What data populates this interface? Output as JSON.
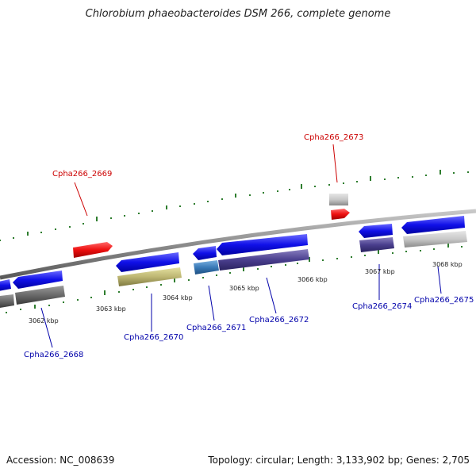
{
  "title": "Chlorobium phaeobacteroides DSM 266, complete genome",
  "footer": {
    "accession": "Accession: NC_008639",
    "summary": "Topology: circular; Length: 3,133,902 bp; Genes: 2,705"
  },
  "colors": {
    "backbone": "#8c8c8c",
    "tick": "#2e7d2e",
    "forward_label": "#cc0000",
    "reverse_label": "#0000aa"
  },
  "kbp_labels": [
    "3062 kbp",
    "3063 kbp",
    "3064 kbp",
    "3065 kbp",
    "3066 kbp",
    "3067 kbp",
    "3068 kbp"
  ],
  "gene_labels": {
    "cpha2668": "Cpha266_2668",
    "cpha2669": "Cpha266_2669",
    "cpha2670": "Cpha266_2670",
    "cpha2671": "Cpha266_2671",
    "cpha2672": "Cpha266_2672",
    "cpha2673": "Cpha266_2673",
    "cpha2674": "Cpha266_2674",
    "cpha2675": "Cpha266_2675"
  }
}
